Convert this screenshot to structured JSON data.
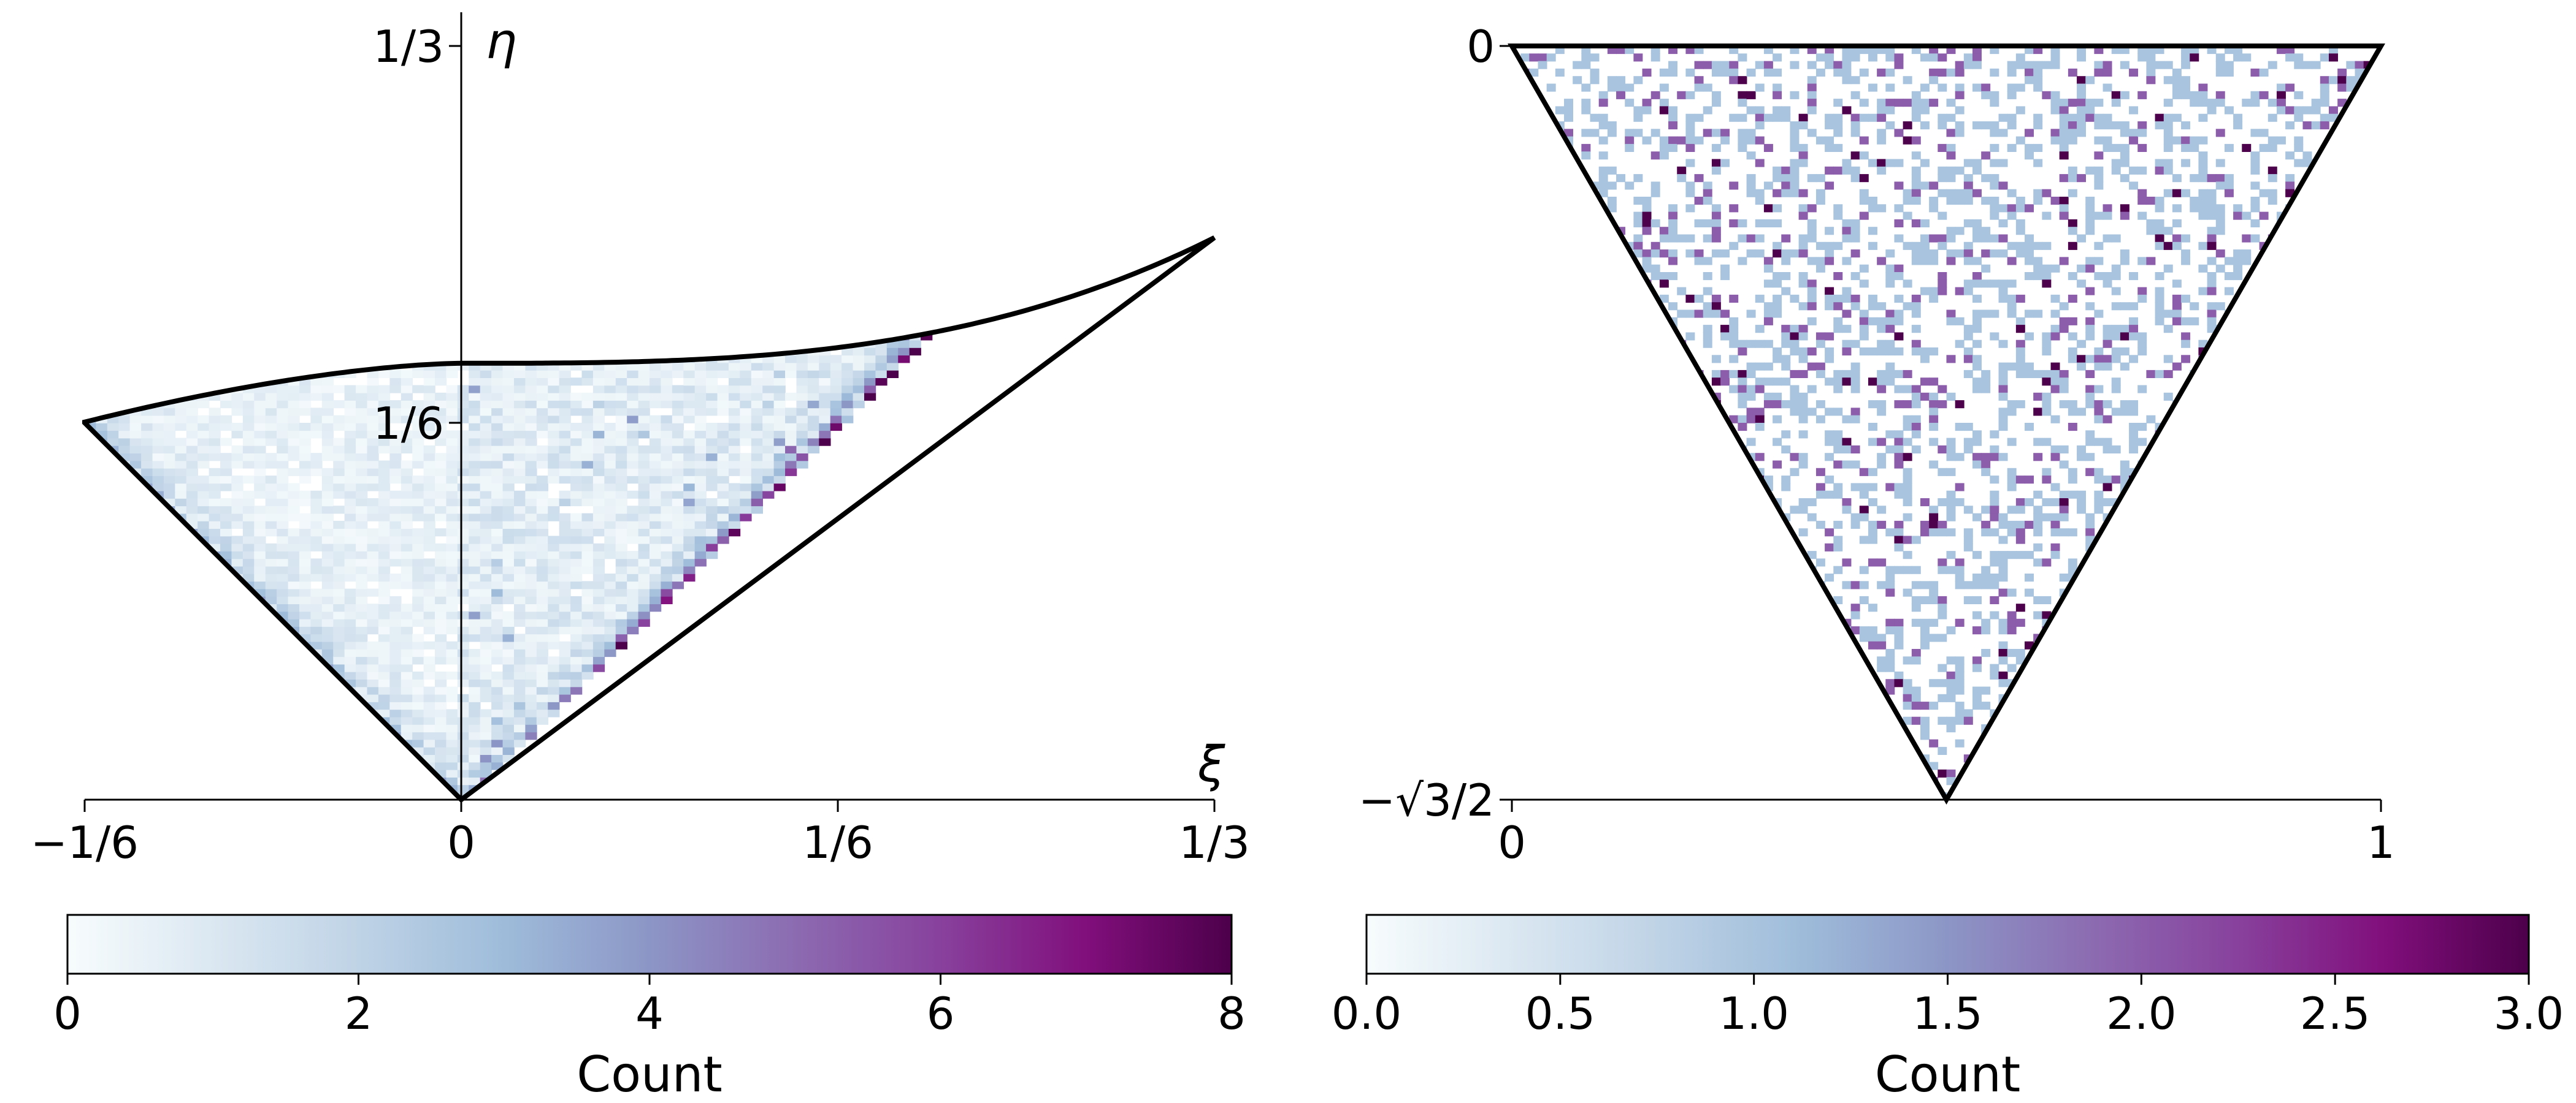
{
  "chart_data": [
    {
      "type": "heatmap",
      "title": "",
      "xlabel": "ξ",
      "ylabel": "η",
      "xlim": [
        -0.16667,
        0.33333
      ],
      "ylim": [
        0,
        0.33333
      ],
      "xticks": [
        {
          "value": -0.16667,
          "label": "−1/6"
        },
        {
          "value": 0,
          "label": "0"
        },
        {
          "value": 0.16667,
          "label": "1/6"
        },
        {
          "value": 0.33333,
          "label": "1/3"
        }
      ],
      "yticks": [
        {
          "value": 0.16667,
          "label": "1/6"
        },
        {
          "value": 0.33333,
          "label": "1/3"
        }
      ],
      "bins": {
        "nx": 100,
        "ny": 100
      },
      "region": "Histogram bins fill the region between the lines η=−ξ (ξ<0), η=ξ (ξ>0) and an upper curve from (−1/6, 1/6) through (0, ≈0.193) to (1/3, 1/3); counts are concentrated along the η=ξ edge",
      "colorbar": {
        "label": "Count",
        "min": 0,
        "max": 8,
        "ticks": [
          "0",
          "2",
          "4",
          "6",
          "8"
        ],
        "colormap": "BuPu"
      },
      "grid": false
    },
    {
      "type": "heatmap",
      "title": "",
      "xlabel": "",
      "ylabel": "",
      "xlim": [
        0,
        1
      ],
      "ylim": [
        -0.866,
        0
      ],
      "xticks": [
        {
          "value": 0,
          "label": "0"
        },
        {
          "value": 1,
          "label": "1"
        }
      ],
      "yticks": [
        {
          "value": -0.866,
          "label": "−√3/2"
        },
        {
          "value": 0,
          "label": "0"
        }
      ],
      "bins": {
        "nx": 100,
        "ny": 100
      },
      "region": "Equilateral triangle with vertices (0,0), (1,0), (0.5, −√3/2); counts appear roughly uniform",
      "colorbar": {
        "label": "Count",
        "min": 0,
        "max": 3,
        "ticks": [
          "0.0",
          "0.5",
          "1.0",
          "1.5",
          "2.0",
          "2.5",
          "3.0"
        ],
        "colormap": "BuPu"
      },
      "grid": false
    }
  ]
}
